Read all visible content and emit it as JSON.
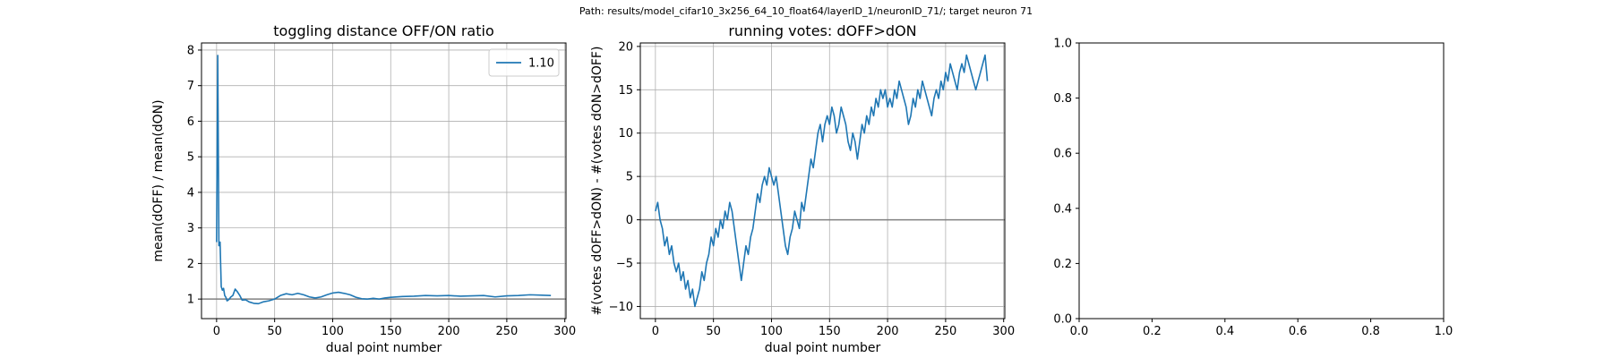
{
  "suptitle": "Path: results/model_cifar10_3x256_64_10_float64/layerID_1/neuronID_71/; target neuron 71",
  "colors": {
    "series": "#1f77b4",
    "refline": "#808080",
    "grid": "#b0b0b0",
    "axis": "#000000"
  },
  "chart_data": [
    {
      "type": "line",
      "title": "toggling distance OFF/ON ratio",
      "xlabel": "dual point number",
      "ylabel": "mean(dOFF) / mean(dON)",
      "xlim": [
        -13,
        301
      ],
      "ylim": [
        0.45,
        8.2
      ],
      "xticks": [
        0,
        50,
        100,
        150,
        200,
        250,
        300
      ],
      "yticks": [
        1,
        2,
        3,
        4,
        5,
        6,
        7,
        8
      ],
      "grid": true,
      "legend": {
        "position": "upper right",
        "entries": [
          "1.10"
        ]
      },
      "reference_line": {
        "y": 1
      },
      "series": [
        {
          "name": "1.10",
          "x": [
            0,
            1,
            2,
            3,
            4,
            5,
            6,
            7,
            8,
            9,
            10,
            11,
            12,
            14,
            16,
            18,
            20,
            22,
            25,
            28,
            32,
            36,
            40,
            45,
            50,
            55,
            60,
            65,
            70,
            75,
            80,
            85,
            90,
            95,
            100,
            105,
            110,
            115,
            120,
            125,
            130,
            135,
            140,
            145,
            150,
            160,
            170,
            180,
            190,
            200,
            210,
            220,
            230,
            240,
            250,
            260,
            270,
            280,
            288
          ],
          "y": [
            2.6,
            7.85,
            2.5,
            2.6,
            1.35,
            1.25,
            1.3,
            1.1,
            1.05,
            0.95,
            0.97,
            1.0,
            1.05,
            1.1,
            1.28,
            1.2,
            1.1,
            0.97,
            0.98,
            0.92,
            0.88,
            0.87,
            0.92,
            0.95,
            1.0,
            1.1,
            1.15,
            1.12,
            1.16,
            1.12,
            1.06,
            1.03,
            1.06,
            1.12,
            1.17,
            1.19,
            1.16,
            1.12,
            1.05,
            1.01,
            1.0,
            1.02,
            1.0,
            1.03,
            1.05,
            1.07,
            1.08,
            1.1,
            1.09,
            1.1,
            1.08,
            1.09,
            1.1,
            1.06,
            1.09,
            1.1,
            1.12,
            1.11,
            1.1
          ]
        }
      ]
    },
    {
      "type": "line",
      "title": "running votes: dOFF>dON",
      "xlabel": "dual point number",
      "ylabel": "#(votes dOFF>dON) - #(votes dON>dOFF)",
      "xlim": [
        -13,
        301
      ],
      "ylim": [
        -11.4,
        20.4
      ],
      "xticks": [
        0,
        50,
        100,
        150,
        200,
        250,
        300
      ],
      "yticks": [
        -10,
        -5,
        0,
        5,
        10,
        15,
        20
      ],
      "grid": true,
      "reference_line": {
        "y": 0
      },
      "series": [
        {
          "x": [
            0,
            2,
            4,
            6,
            8,
            10,
            12,
            14,
            16,
            18,
            20,
            22,
            24,
            26,
            28,
            30,
            32,
            34,
            36,
            38,
            40,
            42,
            44,
            46,
            48,
            50,
            52,
            54,
            56,
            58,
            60,
            62,
            64,
            66,
            68,
            70,
            72,
            74,
            76,
            78,
            80,
            82,
            84,
            86,
            88,
            90,
            92,
            94,
            96,
            98,
            100,
            102,
            104,
            106,
            108,
            110,
            112,
            114,
            116,
            118,
            120,
            122,
            124,
            126,
            128,
            130,
            132,
            134,
            136,
            138,
            140,
            142,
            144,
            146,
            148,
            150,
            152,
            154,
            156,
            158,
            160,
            162,
            164,
            166,
            168,
            170,
            172,
            174,
            176,
            178,
            180,
            182,
            184,
            186,
            188,
            190,
            192,
            194,
            196,
            198,
            200,
            202,
            204,
            206,
            208,
            210,
            212,
            214,
            216,
            218,
            220,
            222,
            224,
            226,
            228,
            230,
            232,
            234,
            236,
            238,
            240,
            242,
            244,
            246,
            248,
            250,
            252,
            254,
            256,
            258,
            260,
            262,
            264,
            266,
            268,
            270,
            272,
            274,
            276,
            278,
            280,
            282,
            284,
            286
          ],
          "y": [
            1,
            2,
            0,
            -1,
            -3,
            -2,
            -4,
            -3,
            -5,
            -6,
            -5,
            -7,
            -6,
            -8,
            -7,
            -9,
            -8,
            -10,
            -9,
            -8,
            -6,
            -7,
            -5,
            -4,
            -2,
            -3,
            -1,
            -2,
            0,
            -1,
            1,
            0,
            2,
            1,
            -1,
            -3,
            -5,
            -7,
            -5,
            -3,
            -4,
            -2,
            -1,
            1,
            3,
            2,
            4,
            5,
            4,
            6,
            5,
            4,
            5,
            3,
            1,
            -1,
            -3,
            -4,
            -2,
            -1,
            1,
            0,
            -1,
            2,
            1,
            3,
            5,
            7,
            6,
            8,
            10,
            11,
            9,
            11,
            12,
            11,
            13,
            12,
            10,
            11,
            13,
            12,
            11,
            9,
            8,
            10,
            9,
            7,
            9,
            11,
            10,
            12,
            11,
            13,
            12,
            14,
            13,
            15,
            14,
            15,
            13,
            14,
            13,
            15,
            14,
            16,
            15,
            14,
            13,
            11,
            12,
            14,
            13,
            15,
            14,
            16,
            15,
            14,
            13,
            12,
            14,
            15,
            14,
            16,
            15,
            17,
            16,
            18,
            17,
            16,
            15,
            17,
            18,
            17,
            19,
            18,
            17,
            16,
            15,
            16,
            17,
            18,
            19,
            16
          ]
        }
      ]
    },
    {
      "type": "line",
      "title": "",
      "xlabel": "",
      "ylabel": "",
      "xlim": [
        0,
        1
      ],
      "ylim": [
        0,
        1
      ],
      "xticks": [
        0.0,
        0.2,
        0.4,
        0.6,
        0.8,
        1.0
      ],
      "yticks": [
        0.0,
        0.2,
        0.4,
        0.6,
        0.8,
        1.0
      ],
      "tick_format_decimals": 1,
      "grid": false,
      "series": []
    }
  ]
}
